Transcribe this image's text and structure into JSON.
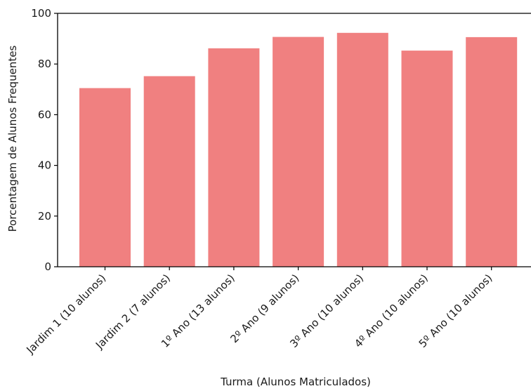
{
  "chart_data": {
    "type": "bar",
    "categories": [
      "Jardim 1 (10 alunos)",
      "Jardim 2 (7 alunos)",
      "1º Ano (13 alunos)",
      "2º Ano (9 alunos)",
      "3º Ano (10 alunos)",
      "4º Ano (10 alunos)",
      "5º Ano (10 alunos)"
    ],
    "values": [
      70.5,
      75.2,
      86.2,
      90.7,
      92.3,
      85.3,
      90.6
    ],
    "title": "",
    "xlabel": "Turma (Alunos Matriculados)",
    "ylabel": "Porcentagem de Alunos Frequentes",
    "ylim": [
      0,
      100
    ],
    "yticks": [
      "0",
      "20",
      "40",
      "60",
      "80",
      "100"
    ],
    "bar_color": "#f08080",
    "axis_color": "#000000",
    "grid": false,
    "legend": "none"
  }
}
